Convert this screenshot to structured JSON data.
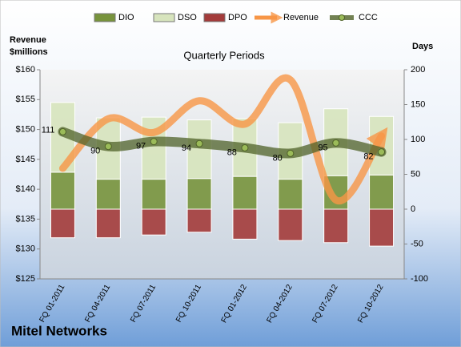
{
  "chart_data": {
    "type": "bar",
    "stacked": true,
    "title": "Quarterly Periods",
    "y_label": [
      "Revenue",
      "$millions"
    ],
    "y2_label": "Days",
    "footer": "Mitel Networks",
    "categories": [
      "FQ 01-2011",
      "FQ 04-2011",
      "FQ 07-2011",
      "FQ 10-2011",
      "FQ 01-2012",
      "FQ 04-2012",
      "FQ 07-2012",
      "FQ 10-2012"
    ],
    "series": [
      {
        "name": "DIO",
        "type": "bar",
        "axis": "y2",
        "color": "#77933c",
        "values": [
          53,
          43,
          43,
          44,
          47,
          43,
          48,
          49
        ]
      },
      {
        "name": "DSO",
        "type": "bar",
        "axis": "y2",
        "color": "#d7e4bd",
        "values": [
          100,
          88,
          89,
          84,
          83,
          81,
          96,
          84
        ]
      },
      {
        "name": "DPO",
        "type": "bar",
        "axis": "y2",
        "color": "#a33b3a",
        "values": [
          -41,
          -41,
          -37,
          -33,
          -43,
          -45,
          -48,
          -53
        ]
      },
      {
        "name": "Revenue",
        "type": "line",
        "color": "#f79646",
        "values": [
          143.5,
          151.8,
          149.5,
          154.8,
          150.9,
          158.3,
          138.2,
          148.9
        ]
      },
      {
        "name": "CCC",
        "type": "line",
        "axis": "y2",
        "color": "#4f6228",
        "values": [
          111,
          90,
          97,
          94,
          88,
          80,
          95,
          82
        ]
      }
    ],
    "ylim": [
      125,
      160
    ],
    "yticks": [
      {
        "value": 125,
        "label": "$125"
      },
      {
        "value": 130,
        "label": "$130"
      },
      {
        "value": 135,
        "label": "$135"
      },
      {
        "value": 140,
        "label": "$140"
      },
      {
        "value": 145,
        "label": "$145"
      },
      {
        "value": 150,
        "label": "$150"
      },
      {
        "value": 155,
        "label": "$155"
      },
      {
        "value": 160,
        "label": "$160"
      }
    ],
    "y2lim": [
      -100,
      200
    ],
    "y2ticks": [
      -100,
      -50,
      0,
      50,
      100,
      150,
      200
    ],
    "grid": false
  }
}
